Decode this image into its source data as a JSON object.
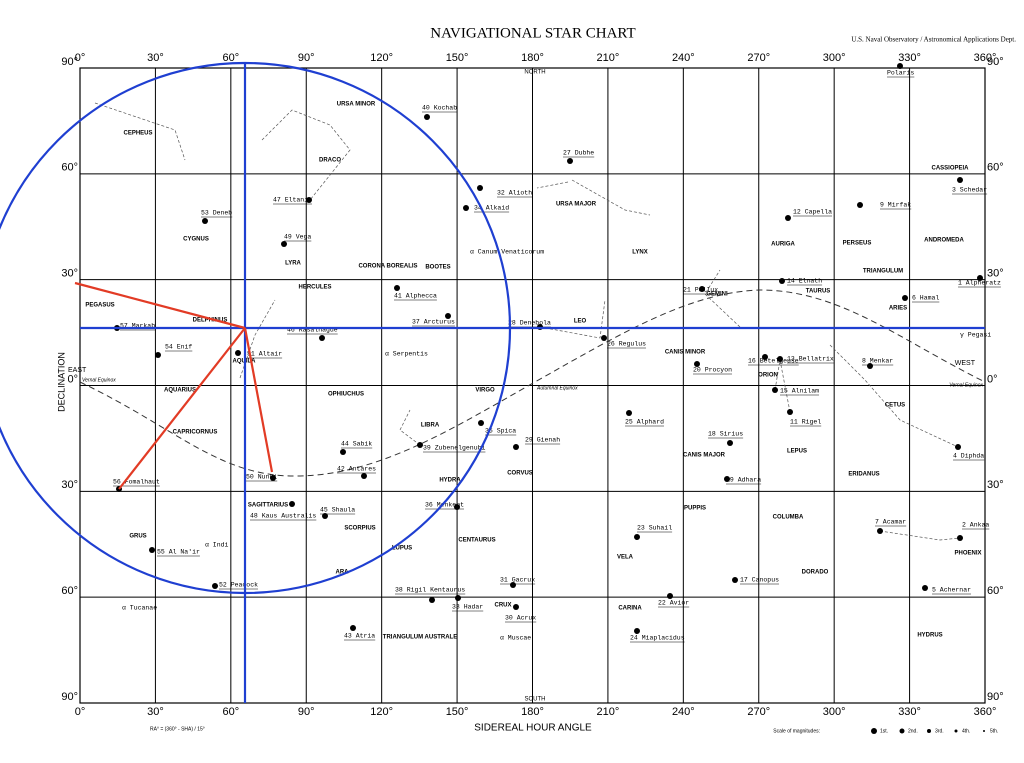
{
  "header": {
    "title": "NAVIGATIONAL STAR CHART",
    "subtitle": "U.S. Naval Observatory / Astronomical Applications Dept."
  },
  "axes": {
    "top_ticks": [
      "0°",
      "30°",
      "60°",
      "90°",
      "120°",
      "150°",
      "180°",
      "210°",
      "240°",
      "270°",
      "300°",
      "330°",
      "360°"
    ],
    "bottom_ticks": [
      "0°",
      "30°",
      "60°",
      "90°",
      "120°",
      "150°",
      "180°",
      "210°",
      "240°",
      "270°",
      "300°",
      "330°",
      "360°"
    ],
    "left_ticks": [
      "90°",
      "60°",
      "30°",
      "0°",
      "30°",
      "60°",
      "90°"
    ],
    "right_ticks": [
      "90°",
      "60°",
      "30°",
      "0°",
      "30°",
      "60°",
      "90°"
    ],
    "x_title": "SIDEREAL HOUR ANGLE",
    "y_title": "DECLINATION"
  },
  "markers": {
    "north": "NORTH",
    "south": "SOUTH",
    "east": "EAST",
    "west": "WEST",
    "vernal_left": "Vernal Equinox",
    "vernal_right": "Vernal Equinox",
    "autumnal": "Autumnal Equinox"
  },
  "stars": [
    "1 Alpheratz",
    "2 Ankaa",
    "3 Schedar",
    "4 Diphda",
    "5 Achernar",
    "6 Hamal",
    "7 Acamar",
    "8 Menkar",
    "9 Mirfak",
    "11 Rigel",
    "12 Capella",
    "13 Bellatrix",
    "14 Elnath",
    "15 Alnilam",
    "16 Betelgeuse",
    "17 Canopus",
    "18 Sirius",
    "19 Adhara",
    "20 Procyon",
    "21 Pollux",
    "22 Avior",
    "23 Suhail",
    "24 Miaplacidus",
    "25 Alphard",
    "26 Regulus",
    "27 Dubhe",
    "28 Denebola",
    "29 Gienah",
    "30 Acrux",
    "31 Gacrux",
    "32 Alioth",
    "33 Hadar",
    "34 Alkaid",
    "35 Spica",
    "36 Menkent",
    "37 Arcturus",
    "38 Rigil Kentaurus",
    "39 Zubenelgenubi",
    "40 Kochab",
    "41 Alphecca",
    "42 Antares",
    "43 Atria",
    "44 Sabik",
    "45 Shaula",
    "46 Rasalhague",
    "47 Eltanin",
    "48 Kaus Australis",
    "49 Vega",
    "50 Nunki",
    "51 Altair",
    "52 Peacock",
    "53 Deneb",
    "54 Enif",
    "55 Al Na'ir",
    "56 Fomalhaut",
    "57 Markab",
    "Polaris"
  ],
  "other_stars": [
    "γ Pegasi",
    "α Canum Venaticorum",
    "α Serpentis",
    "α Indi",
    "α Tucanae",
    "α Muscae"
  ],
  "constellations": [
    "CEPHEUS",
    "URSA MINOR",
    "DRACO",
    "CYGNUS",
    "LYRA",
    "PEGASUS",
    "DELPHINUS",
    "HERCULES",
    "CORONA BOREALIS",
    "BOOTES",
    "URSA MAJOR",
    "LEO",
    "LYNX",
    "GEMINI",
    "CANIS MINOR",
    "AURIGA",
    "PERSEUS",
    "TRIANGULUM",
    "ANDROMEDA",
    "CASSIOPEIA",
    "TAURUS",
    "ARIES",
    "ORION",
    "CANIS MAJOR",
    "LEPUS",
    "CETUS",
    "ERIDANUS",
    "COLUMBA",
    "PUPPIS",
    "VELA",
    "CARINA",
    "DORADO",
    "PHOENIX",
    "HYDRUS",
    "AQUILA",
    "AQUARIUS",
    "CAPRICORNUS",
    "OPHIUCHUS",
    "VIRGO",
    "LIBRA",
    "CORVUS",
    "HYDRA",
    "SAGITTARIUS",
    "SCORPIUS",
    "LUPUS",
    "CENTAURUS",
    "ARA",
    "CRUX",
    "TRIANGULUM AUSTRALE",
    "GRUS"
  ],
  "legend": {
    "title": "Scale of magnitudes:",
    "items": [
      "1st.",
      "2nd.",
      "3rd.",
      "4th.",
      "5th."
    ]
  },
  "footnote": "RA° = (360° - SHA) / 15°"
}
